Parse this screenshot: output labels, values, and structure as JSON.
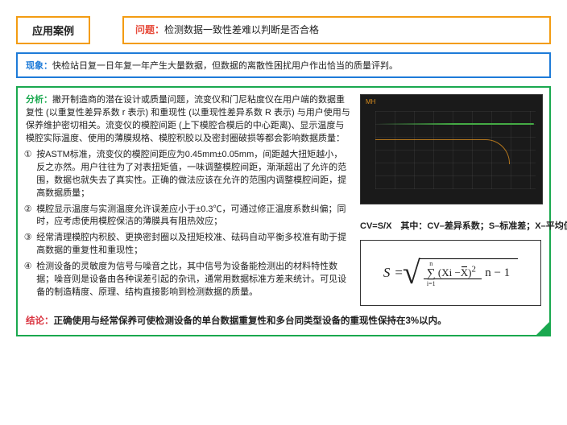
{
  "header": {
    "badge": "应用案例",
    "problem_label": "问题：",
    "problem_text": "检测数据一致性差难以判断是否合格"
  },
  "phenom": {
    "label": "现象：",
    "text": "快检站日复一日年复一年产生大量数据，但数据的离散性困扰用户作出恰当的质量评判。"
  },
  "analysis": {
    "label": "分析：",
    "intro": "撇开制造商的潜在设计或质量问题，流变仪和门尼粘度仪在用户端的数据重复性 (以重复性差异系数 r 表示) 和重现性 (以重现性差异系数 R 表示) 与用户使用与保养维护密切相关。流变仪的模腔间距 (上下模腔合模后的中心距离)、显示温度与模腔实际温度、使用的薄膜规格、模腔积胶以及密封圈破损等都会影响数据质量：",
    "points": [
      "按ASTM标准，流变仪的模腔间距应为0.45mm±0.05mm，间距越大扭矩越小，反之亦然。用户往往为了对表扭矩值，一味调整模腔间距，渐渐超出了允许的范围，数据也就失去了真实性。正确的做法应该在允许的范围内调整模腔间距，提高数据质量；",
      "模腔显示温度与实测温度允许误差应小于±0.3℃，可通过修正温度系数纠偏；同时，应考虑使用模腔保洁的薄膜具有阻热效应；",
      "经常清理模腔内积胶、更换密封圈以及扭矩校准、砝码自动平衡多校准有助于提高数据的重复性和重现性；",
      "检测设备的灵敏度为信号与噪音之比，其中信号为设备能检测出的材料特性数据；噪音则是设备由各种误差引起的杂讯，通常用数据标准方差来统计。可见设备的制造精度、原理、结构直接影响到检测数据的质量。"
    ],
    "nums": [
      "①",
      "②",
      "③",
      "④"
    ]
  },
  "right": {
    "cv_line": "CV=S/X 其中：CV–差异系数；S–标准差；X–平均值",
    "formula": {
      "lhs": "S",
      "eq": "=",
      "sum_top": "n",
      "sum_bot": "i=1",
      "num_expr_a": "(Xi −",
      "num_expr_b": ")",
      "num_sup": "2",
      "den": "n − 1",
      "xbar": "X"
    },
    "chart_title": "MH"
  },
  "conclusion": {
    "label": "结论：",
    "text": "正确使用与经常保养可使检测设备的单台数据重复性和多台同类型设备的重现性保持在3%以内。"
  }
}
